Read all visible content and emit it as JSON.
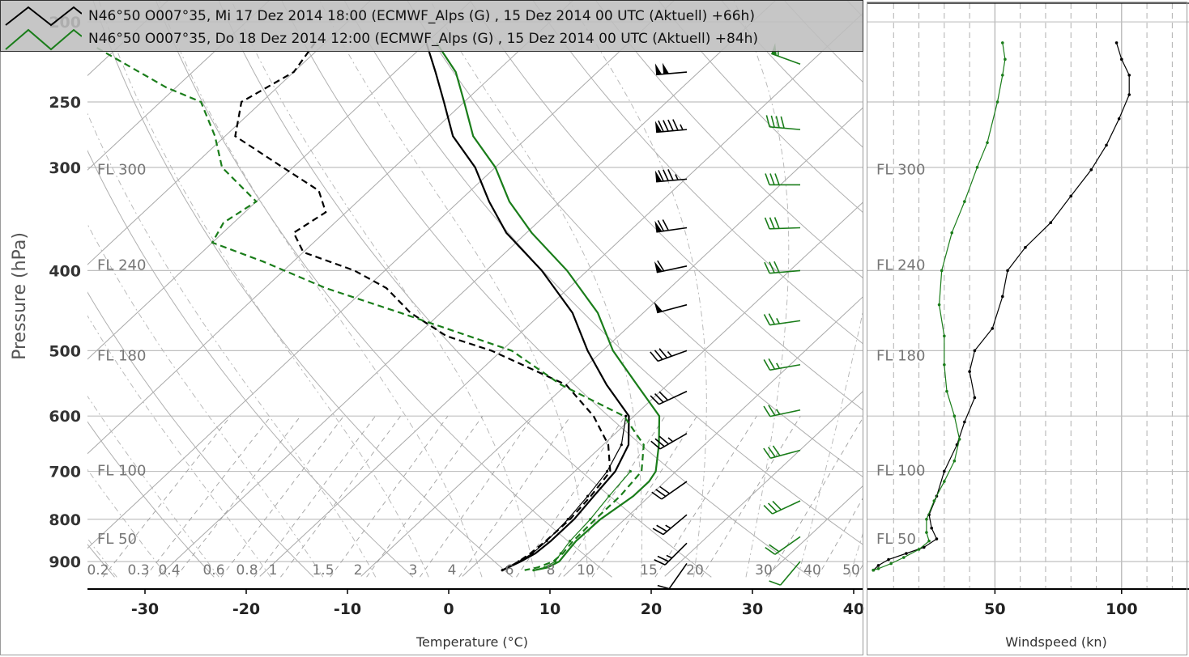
{
  "legend": [
    {
      "label": "N46°50 O007°35, Mi 17 Dez 2014 18:00 (ECMWF_Alps (G) , 15 Dez 2014 00 UTC (Aktuell) +66h)",
      "color": "#000000"
    },
    {
      "label": "N46°50 O007°35, Do 18 Dez 2014 12:00 (ECMWF_Alps (G) , 15 Dez 2014 00 UTC (Aktuell) +84h)",
      "color": "#1a7d1a"
    }
  ],
  "chart_data": [
    {
      "type": "line",
      "chart_kind": "skew-T log-p sounding",
      "xlabel": "Temperature (°C)",
      "ylabel": "Pressure (hPa)",
      "x_ticks": [
        -30,
        -20,
        -10,
        0,
        10,
        20,
        30,
        40
      ],
      "y_ticks": [
        250,
        300,
        400,
        500,
        600,
        700,
        800,
        900
      ],
      "y_tick_top_partial": "200",
      "flight_levels": [
        {
          "label": "FL 300",
          "p": 301
        },
        {
          "label": "FL 240",
          "p": 393
        },
        {
          "label": "FL 180",
          "p": 506
        },
        {
          "label": "FL 100",
          "p": 697
        },
        {
          "label": "FL 50",
          "p": 843
        }
      ],
      "mixing_ratio_labels": [
        "0.2",
        "0.3",
        "0.4",
        "0.6",
        "0.8",
        "1",
        "1.5",
        "2",
        "3",
        "4",
        "6",
        "8",
        "10",
        "15",
        "20",
        "30",
        "40",
        "50"
      ],
      "xlim": [
        -35,
        40
      ],
      "ylim": [
        938,
        200
      ],
      "log_scale": "pressure",
      "grid": true,
      "series": [
        {
          "name": "N46°50 O007°35, Mi 17 Dez 2014 18:00 (ECMWF_Alps (G) , 15 Dez 2014 00 UTC (Aktuell) +66h)",
          "color": "#000000",
          "role": "temperature",
          "p": [
            212,
            230,
            250,
            275,
            300,
            330,
            360,
            400,
            450,
            500,
            550,
            600,
            650,
            700,
            750,
            800,
            850,
            880,
            900,
            915,
            922
          ],
          "t": [
            -60,
            -56,
            -52,
            -47.5,
            -42,
            -37,
            -32,
            -24.5,
            -17,
            -11.5,
            -6,
            -0.5,
            2.5,
            4,
            4.5,
            5,
            5,
            4.8,
            4.2,
            3.6,
            3.3
          ]
        },
        {
          "color": "#000000",
          "role": "dewpoint",
          "p": [
            212,
            230,
            250,
            275,
            300,
            320,
            340,
            360,
            380,
            400,
            420,
            450,
            480,
            500,
            550,
            600,
            650,
            700,
            750,
            800,
            850,
            880,
            900,
            915,
            922
          ],
          "t": [
            -71,
            -70,
            -72,
            -69,
            -61,
            -55,
            -52,
            -53,
            -50,
            -43,
            -38,
            -33,
            -27,
            -21,
            -10,
            -4,
            0.5,
            3.5,
            4.2,
            4.6,
            4.5,
            4.3,
            4,
            3.6,
            3.3
          ]
        },
        {
          "color": "#000000",
          "role": "wetbulb",
          "p": [
            600,
            650,
            700,
            750,
            800,
            850,
            880,
            900,
            915,
            922
          ],
          "t": [
            -0.8,
            1.8,
            3.2,
            3.9,
            4.4,
            4.6,
            4.5,
            4,
            3.5,
            3.3
          ]
        },
        {
          "name": "N46°50 O007°35, Do 18 Dez 2014 12:00 (ECMWF_Alps (G) , 15 Dez 2014 00 UTC (Aktuell) +84h)",
          "color": "#1a7d1a",
          "role": "temperature",
          "p": [
            212,
            230,
            250,
            275,
            300,
            330,
            360,
            400,
            450,
            500,
            550,
            600,
            650,
            700,
            720,
            750,
            800,
            850,
            880,
            900,
            915,
            922
          ],
          "t": [
            -59,
            -54,
            -50,
            -45.5,
            -40,
            -35,
            -29.5,
            -22,
            -14.5,
            -9,
            -3,
            2.5,
            5.5,
            8,
            8.4,
            8.4,
            7.6,
            7.5,
            7.8,
            8,
            7.5,
            6.5
          ]
        },
        {
          "color": "#1a7d1a",
          "role": "dewpoint",
          "p": [
            215,
            240,
            250,
            275,
            300,
            330,
            350,
            370,
            390,
            420,
            450,
            500,
            550,
            600,
            650,
            700,
            750,
            800,
            850,
            880,
            900,
            915,
            922
          ],
          "t": [
            -92,
            -81,
            -76,
            -71,
            -67,
            -60,
            -61,
            -60,
            -53,
            -44,
            -34,
            -19,
            -10.5,
            -1,
            4,
            6.6,
            7.1,
            7.1,
            7.2,
            7.5,
            7.4,
            6.5,
            5.5
          ]
        },
        {
          "color": "#1a7d1a",
          "role": "wetbulb",
          "p": [
            700,
            750,
            800,
            850,
            880,
            900,
            915,
            922
          ],
          "t": [
            5.5,
            6,
            6.6,
            6.9,
            7.3,
            7.6,
            7.2,
            6.4
          ]
        }
      ],
      "wind_barbs": [
        {
          "color": "#000000",
          "levels": [
            {
              "p": 230,
              "speed": 100,
              "dir": 265
            },
            {
              "p": 270,
              "speed": 95,
              "dir": 265
            },
            {
              "p": 310,
              "speed": 85,
              "dir": 265
            },
            {
              "p": 355,
              "speed": 70,
              "dir": 262
            },
            {
              "p": 395,
              "speed": 60,
              "dir": 258
            },
            {
              "p": 440,
              "speed": 50,
              "dir": 255
            },
            {
              "p": 500,
              "speed": 35,
              "dir": 250
            },
            {
              "p": 560,
              "speed": 32,
              "dir": 245
            },
            {
              "p": 630,
              "speed": 35,
              "dir": 240
            },
            {
              "p": 720,
              "speed": 30,
              "dir": 235
            },
            {
              "p": 790,
              "speed": 25,
              "dir": 230
            },
            {
              "p": 855,
              "speed": 25,
              "dir": 225
            },
            {
              "p": 905,
              "speed": 10,
              "dir": 215
            }
          ]
        },
        {
          "color": "#1a7d1a",
          "levels": [
            {
              "p": 225,
              "speed": 55,
              "dir": 290
            },
            {
              "p": 270,
              "speed": 40,
              "dir": 275
            },
            {
              "p": 315,
              "speed": 30,
              "dir": 270
            },
            {
              "p": 355,
              "speed": 30,
              "dir": 268
            },
            {
              "p": 400,
              "speed": 30,
              "dir": 265
            },
            {
              "p": 460,
              "speed": 25,
              "dir": 262
            },
            {
              "p": 520,
              "speed": 25,
              "dir": 260
            },
            {
              "p": 590,
              "speed": 25,
              "dir": 258
            },
            {
              "p": 660,
              "speed": 30,
              "dir": 255
            },
            {
              "p": 760,
              "speed": 30,
              "dir": 245
            },
            {
              "p": 840,
              "speed": 20,
              "dir": 235
            },
            {
              "p": 900,
              "speed": 10,
              "dir": 220
            }
          ]
        }
      ]
    },
    {
      "type": "line",
      "chart_kind": "wind speed profile",
      "xlabel": "Windspeed (kn)",
      "x_ticks": [
        50,
        100
      ],
      "xlim": [
        0,
        125
      ],
      "ylim": [
        938,
        200
      ],
      "log_scale": "pressure",
      "grid": true,
      "flight_levels": [
        {
          "label": "FL 300",
          "p": 301
        },
        {
          "label": "FL 240",
          "p": 393
        },
        {
          "label": "FL 180",
          "p": 506
        },
        {
          "label": "FL 100",
          "p": 697
        },
        {
          "label": "FL 50",
          "p": 843
        }
      ],
      "series": [
        {
          "color": "#000000",
          "p": [
            212,
            222,
            232,
            245,
            262,
            282,
            302,
            325,
            350,
            375,
            400,
            430,
            470,
            500,
            530,
            570,
            610,
            650,
            700,
            750,
            790,
            820,
            845,
            865,
            880,
            895,
            910,
            922
          ],
          "speed": [
            98,
            100,
            103,
            103,
            99,
            94,
            88,
            80,
            72,
            62,
            55,
            53,
            49,
            42,
            40,
            42,
            38,
            35,
            30,
            27,
            24,
            25,
            27,
            22,
            15,
            8,
            4,
            2
          ]
        },
        {
          "color": "#1a7d1a",
          "p": [
            212,
            222,
            232,
            250,
            280,
            300,
            330,
            360,
            400,
            440,
            480,
            520,
            560,
            600,
            640,
            680,
            720,
            760,
            800,
            830,
            850,
            870,
            890,
            905,
            918,
            922
          ],
          "speed": [
            53,
            54,
            53,
            51,
            47,
            43,
            38,
            33,
            29,
            28,
            30,
            30,
            31,
            34,
            36,
            34,
            30,
            26,
            23,
            23,
            24,
            20,
            14,
            9,
            4,
            2
          ]
        }
      ]
    }
  ]
}
